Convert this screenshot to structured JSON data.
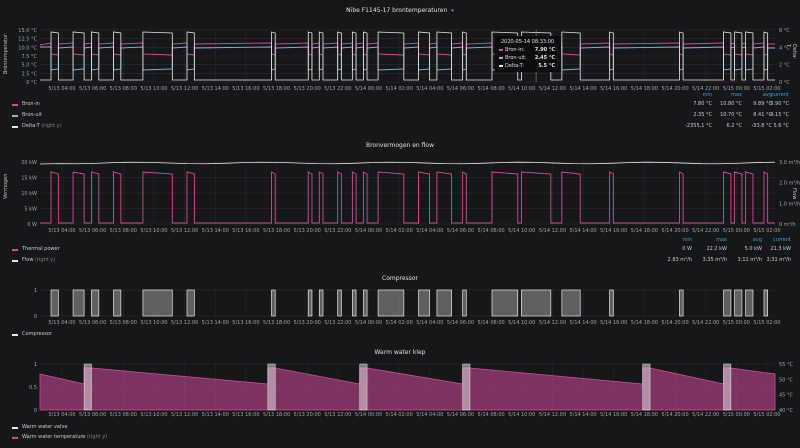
{
  "panel1": {
    "title": "Nibe F1145-17 brontemperaturen",
    "y_left_label": "Brontemperatur",
    "y_right_label": "Delta-T",
    "y_left_ticks": [
      "15.0 °C",
      "12.5 °C",
      "10.0 °C",
      "7.5 °C",
      "5.0 °C",
      "2.5 °C",
      "0 °C"
    ],
    "y_right_ticks": [
      "6 °C",
      "4 °C",
      "2 °C",
      "0 °C"
    ],
    "x_ticks": [
      "5/13 04:00",
      "5/13 06:00",
      "5/13 08:00",
      "5/13 10:00",
      "5/13 12:00",
      "5/13 14:00",
      "5/13 16:00",
      "5/13 18:00",
      "5/13 20:00",
      "5/13 22:00",
      "5/14 00:00",
      "5/14 02:00",
      "5/14 04:00",
      "5/14 06:00",
      "5/14 08:00",
      "5/14 10:00",
      "5/14 12:00",
      "5/14 14:00",
      "5/14 16:00",
      "5/14 18:00",
      "5/14 20:00",
      "5/14 22:00",
      "5/15 00:00",
      "5/15 02:00"
    ],
    "legend_headers": [
      "min",
      "max",
      "avg",
      "current"
    ],
    "legend": [
      {
        "name": "Bron-in",
        "aux": "",
        "color": "#d44a9a",
        "values": [
          "7.80 °C",
          "10.80 °C",
          "9.89 °C",
          "9.90 °C"
        ]
      },
      {
        "name": "Bron-uit",
        "aux": "",
        "color": "#7eb6e0",
        "values": [
          "2.35 °C",
          "10.70 °C",
          "8.41 °C",
          "4.15 °C"
        ]
      },
      {
        "name": "Delta-T",
        "aux": "(right y)",
        "color": "#e8e8e8",
        "values": [
          "-2355.1 °C",
          "6.2 °C",
          "-33.8 °C",
          "5.6 °C"
        ]
      }
    ],
    "tooltip": {
      "time": "2020-05-14 08:33:00",
      "rows": [
        {
          "name": "Bron-in:",
          "value": "7.90 °C",
          "color": "#d44a9a"
        },
        {
          "name": "Bron-uit:",
          "value": "2.45 °C",
          "color": "#7eb6e0"
        },
        {
          "name": "Delta-T:",
          "value": "5.5 °C",
          "color": "#e8e8e8"
        }
      ]
    }
  },
  "panel2": {
    "title": "Bronvermogen en flow",
    "y_left_label": "Vermogen",
    "y_right_label": "Flow",
    "y_left_ticks": [
      "20 kW",
      "15 kW",
      "10 kW",
      "5 kW",
      "0 W"
    ],
    "y_right_ticks": [
      "3.0 m³/h",
      "2.0 m³/h",
      "1.0 m³/h",
      "0 m³/h"
    ],
    "x_ticks": [
      "5/13 04:00",
      "5/13 06:00",
      "5/13 08:00",
      "5/13 10:00",
      "5/13 12:00",
      "5/13 14:00",
      "5/13 16:00",
      "5/13 18:00",
      "5/13 20:00",
      "5/13 22:00",
      "5/14 00:00",
      "5/14 02:00",
      "5/14 04:00",
      "5/14 06:00",
      "5/14 08:00",
      "5/14 10:00",
      "5/14 12:00",
      "5/14 14:00",
      "5/14 16:00",
      "5/14 18:00",
      "5/14 20:00",
      "5/14 22:00",
      "5/15 00:00",
      "5/15 02:00"
    ],
    "legend_headers": [
      "min",
      "max",
      "avg",
      "current"
    ],
    "legend": [
      {
        "name": "Thermal power",
        "aux": "",
        "color": "#d44a9a",
        "values": [
          "0 W",
          "22.2 kW",
          "5.0 kW",
          "21.3 kW"
        ]
      },
      {
        "name": "Flow",
        "aux": "(right y)",
        "color": "#e8e8e8",
        "values": [
          "2.83 m³/h",
          "3.35 m³/h",
          "3.11 m³/h",
          "3.31 m³/h"
        ]
      }
    ]
  },
  "panel3": {
    "title": "Compressor",
    "y_ticks": [
      "1",
      "0"
    ],
    "x_ticks": [
      "5/13 04:00",
      "5/13 06:00",
      "5/13 08:00",
      "5/13 10:00",
      "5/13 12:00",
      "5/13 14:00",
      "5/13 16:00",
      "5/13 18:00",
      "5/13 20:00",
      "5/13 22:00",
      "5/14 00:00",
      "5/14 02:00",
      "5/14 04:00",
      "5/14 06:00",
      "5/14 08:00",
      "5/14 10:00",
      "5/14 12:00",
      "5/14 14:00",
      "5/14 16:00",
      "5/14 18:00",
      "5/14 20:00",
      "5/14 22:00",
      "5/15 00:00",
      "5/15 02:00"
    ],
    "legend": [
      {
        "name": "Compressor",
        "aux": "",
        "color": "#e8e8e8"
      }
    ]
  },
  "panel4": {
    "title": "Warm water klep",
    "y_left_ticks": [
      "1",
      "0.5",
      "0"
    ],
    "y_right_ticks": [
      "55 °C",
      "50 °C",
      "45 °C",
      "40 °C"
    ],
    "x_ticks": [
      "5/13 04:00",
      "5/13 06:00",
      "5/13 08:00",
      "5/13 10:00",
      "5/13 12:00",
      "5/13 14:00",
      "5/13 16:00",
      "5/13 18:00",
      "5/13 20:00",
      "5/13 22:00",
      "5/14 00:00",
      "5/14 02:00",
      "5/14 04:00",
      "5/14 06:00",
      "5/14 08:00",
      "5/14 10:00",
      "5/14 12:00",
      "5/14 14:00",
      "5/14 16:00",
      "5/14 18:00",
      "5/14 20:00",
      "5/14 22:00",
      "5/15 00:00",
      "5/15 02:00"
    ],
    "legend": [
      {
        "name": "Warm water valve",
        "aux": "",
        "color": "#e8e8e8"
      },
      {
        "name": "Warm water temperature",
        "aux": "(right y)",
        "color": "#d44a9a"
      }
    ]
  },
  "compressor_on_intervals": [
    [
      0.03,
      0.05
    ],
    [
      0.09,
      0.12
    ],
    [
      0.14,
      0.16
    ],
    [
      0.2,
      0.22
    ],
    [
      0.28,
      0.36
    ],
    [
      0.4,
      0.42
    ],
    [
      0.63,
      0.64
    ],
    [
      0.73,
      0.74
    ],
    [
      0.76,
      0.77
    ],
    [
      0.81,
      0.82
    ],
    [
      0.85,
      0.86
    ],
    [
      0.88,
      0.89
    ],
    [
      0.92,
      0.99
    ],
    [
      1.03,
      1.06
    ],
    [
      1.08,
      1.12
    ],
    [
      1.15,
      1.16
    ],
    [
      1.23,
      1.3
    ],
    [
      1.31,
      1.39
    ],
    [
      1.42,
      1.47
    ],
    [
      1.55,
      1.56
    ],
    [
      1.74,
      1.75
    ],
    [
      1.86,
      1.88
    ],
    [
      1.89,
      1.91
    ],
    [
      1.92,
      1.94
    ],
    [
      1.97,
      1.98
    ]
  ],
  "warm_water_on_intervals": [
    [
      0.12,
      0.14
    ],
    [
      0.62,
      0.64
    ],
    [
      0.87,
      0.89
    ],
    [
      1.15,
      1.17
    ],
    [
      1.64,
      1.66
    ],
    [
      1.86,
      1.88
    ]
  ]
}
